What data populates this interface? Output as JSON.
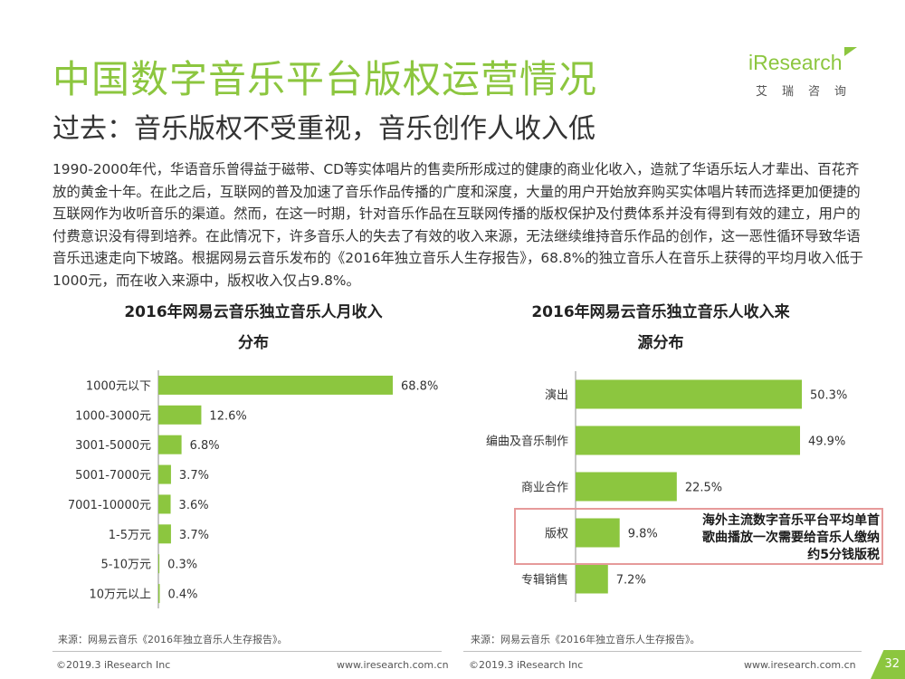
{
  "header": {
    "title": "中国数字音乐平台版权运营情况",
    "subtitle": "过去：音乐版权不受重视，音乐创作人收入低"
  },
  "logo": {
    "brand": "iResearch",
    "cn": "艾瑞咨询"
  },
  "paragraph": "1990-2000年代，华语音乐曾得益于磁带、CD等实体唱片的售卖所形成过的健康的商业化收入，造就了华语乐坛人才辈出、百花齐放的黄金十年。在此之后，互联网的普及加速了音乐作品传播的广度和深度，大量的用户开始放弃购买实体唱片转而选择更加便捷的互联网作为收听音乐的渠道。然而，在这一时期，针对音乐作品在互联网传播的版权保护及付费体系并没有得到有效的建立，用户的付费意识没有得到培养。在此情况下，许多音乐人的失去了有效的收入来源，无法继续维持音乐作品的创作，这一恶性循环导致华语音乐迅速走向下坡路。根据网易云音乐发布的《2016年独立音乐人生存报告》，68.8%的独立音乐人在音乐上获得的平均月收入低于1000元，而在收入来源中，版权收入仅占9.8%。",
  "chart_data": [
    {
      "type": "bar",
      "orientation": "horizontal",
      "title": "2016年网易云音乐独立音乐人月收入分布",
      "categories": [
        "1000元以下",
        "1000-3000元",
        "3001-5000元",
        "5001-7000元",
        "7001-10000元",
        "1-5万元",
        "5-10万元",
        "10万元以上"
      ],
      "values": [
        68.8,
        12.6,
        6.8,
        3.7,
        3.6,
        3.7,
        0.3,
        0.4
      ],
      "value_labels": [
        "68.8%",
        "12.6%",
        "6.8%",
        "3.7%",
        "3.6%",
        "3.7%",
        "0.3%",
        "0.4%"
      ],
      "unit": "%",
      "color": "#8cc63f",
      "source": "来源：网易云音乐《2016年独立音乐人生存报告》。"
    },
    {
      "type": "bar",
      "orientation": "horizontal",
      "title": "2016年网易云音乐独立音乐人收入来源分布",
      "categories": [
        "演出",
        "编曲及音乐制作",
        "商业合作",
        "版权",
        "专辑销售"
      ],
      "values": [
        50.3,
        49.9,
        22.5,
        9.8,
        7.2
      ],
      "value_labels": [
        "50.3%",
        "49.9%",
        "22.5%",
        "9.8%",
        "7.2%"
      ],
      "unit": "%",
      "color": "#8cc63f",
      "highlight_category": "版权",
      "annotation": "海外主流数字音乐平台平均单首歌曲播放一次需要给音乐人缴纳约5分钱版税",
      "source": "来源：网易云音乐《2016年独立音乐人生存报告》。"
    }
  ],
  "chart_titles": {
    "left_line1": "2016年网易云音乐独立音乐人月收入",
    "left_line2": "分布",
    "right_line1": "2016年网易云音乐独立音乐人收入来",
    "right_line2": "源分布"
  },
  "callout": {
    "line1": "海外主流数字音乐平台平均单首",
    "line2": "歌曲播放一次需要给音乐人缴纳",
    "line3": "约5分钱版税"
  },
  "sources": {
    "left": "来源：网易云音乐《2016年独立音乐人生存报告》。",
    "right": "来源：网易云音乐《2016年独立音乐人生存报告》。"
  },
  "footer": {
    "copyright_left": "©2019.3 iResearch Inc",
    "url_left": "www.iresearch.com.cn",
    "copyright_right": "©2019.3 iResearch Inc",
    "url_right": "www.iresearch.com.cn",
    "page": "32"
  },
  "colors": {
    "accent": "#8cc63f",
    "highlight_border": "#e69a9a"
  }
}
